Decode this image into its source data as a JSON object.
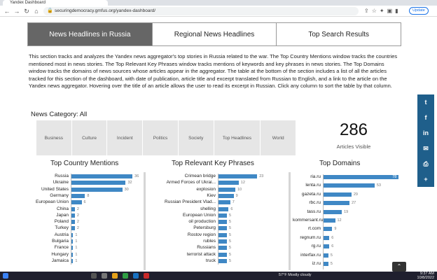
{
  "browser": {
    "tab_title": "Yandex Dashboard",
    "url": "securingdemocracy.gmfus.org/yandex-dashboard/",
    "update_label": "Update"
  },
  "tabs": [
    {
      "label": "News Headlines in Russia",
      "active": true
    },
    {
      "label": "Regional News Headlines",
      "active": false
    },
    {
      "label": "Top Search Results",
      "active": false
    }
  ],
  "description": "This section tracks and analyzes the Yandex news aggregator's top stories in Russia related to the war. The Top Country Mentions window tracks the countries mentioned most in news stories. The Top Relevant Key Phrases window tracks mentions of keywords and key phrases in news stories. The Top Domains window tracks the domains of news sources whose articles appear in the aggregator. The table at the bottom of the section includes a list of all the articles tracked for this section of the dashboard, with date of publication, article title and excerpt translated from Russian to English, and a link to the article on the Yandex news aggregator. Hovering over the title of an article allows the user to read its excerpt in Russian. Click any column to sort the table by that column.",
  "news_category": {
    "label": "News Category: All",
    "buttons": [
      "Business",
      "Culture",
      "Incident",
      "Politics",
      "Society",
      "Top Headlines",
      "World"
    ]
  },
  "articles": {
    "count": "286",
    "label": "Articles Visible"
  },
  "chart_data": [
    {
      "type": "bar",
      "title": "Top Country Mentions",
      "categories": [
        "Russia",
        "Ukraine",
        "United States",
        "Germany",
        "European Union",
        "China",
        "Japan",
        "Poland",
        "Turkey",
        "Austria",
        "Bulgaria",
        "France",
        "Hungary",
        "Jamaica"
      ],
      "values": [
        36,
        32,
        30,
        8,
        6,
        2,
        2,
        2,
        2,
        1,
        1,
        1,
        1,
        1
      ]
    },
    {
      "type": "bar",
      "title": "Top Relevant Key Phrases",
      "categories": [
        "Crimean bridge",
        "Armed Forces of Ukrai...",
        "explosion",
        "Kiev",
        "Russian President Vlad...",
        "shelling",
        "European Union",
        "oil production",
        "Petersburg",
        "Rostov region",
        "rubles",
        "Russians",
        "terrorist attack",
        "truck"
      ],
      "values": [
        23,
        12,
        10,
        9,
        7,
        6,
        5,
        5,
        5,
        5,
        5,
        5,
        5,
        5
      ]
    },
    {
      "type": "bar",
      "title": "Top Domains",
      "categories": [
        "ria.ru",
        "lenta.ru",
        "gazeta.ru",
        "rbc.ru",
        "tass.ru",
        "kommersant.ru",
        "rt.com",
        "regnum.ru",
        "rg.ru",
        "interfax.ru",
        "iz.ru"
      ],
      "values": [
        78,
        53,
        29,
        27,
        19,
        12,
        9,
        6,
        6,
        5,
        5
      ]
    }
  ],
  "social": [
    {
      "name": "twitter-icon",
      "glyph": "t"
    },
    {
      "name": "facebook-icon",
      "glyph": "f"
    },
    {
      "name": "linkedin-icon",
      "glyph": "in"
    },
    {
      "name": "email-icon",
      "glyph": "✉"
    },
    {
      "name": "print-icon",
      "glyph": "⎙"
    },
    {
      "name": "plus-icon",
      "glyph": "+"
    }
  ],
  "taskbar": {
    "weather": "57°F  Mostly cloudy",
    "time": "9:37 AM",
    "date": "10/8/2022"
  },
  "colors": {
    "bar": "#3f88c5",
    "active_tab": "#666666",
    "social": "#1f5f8b"
  }
}
